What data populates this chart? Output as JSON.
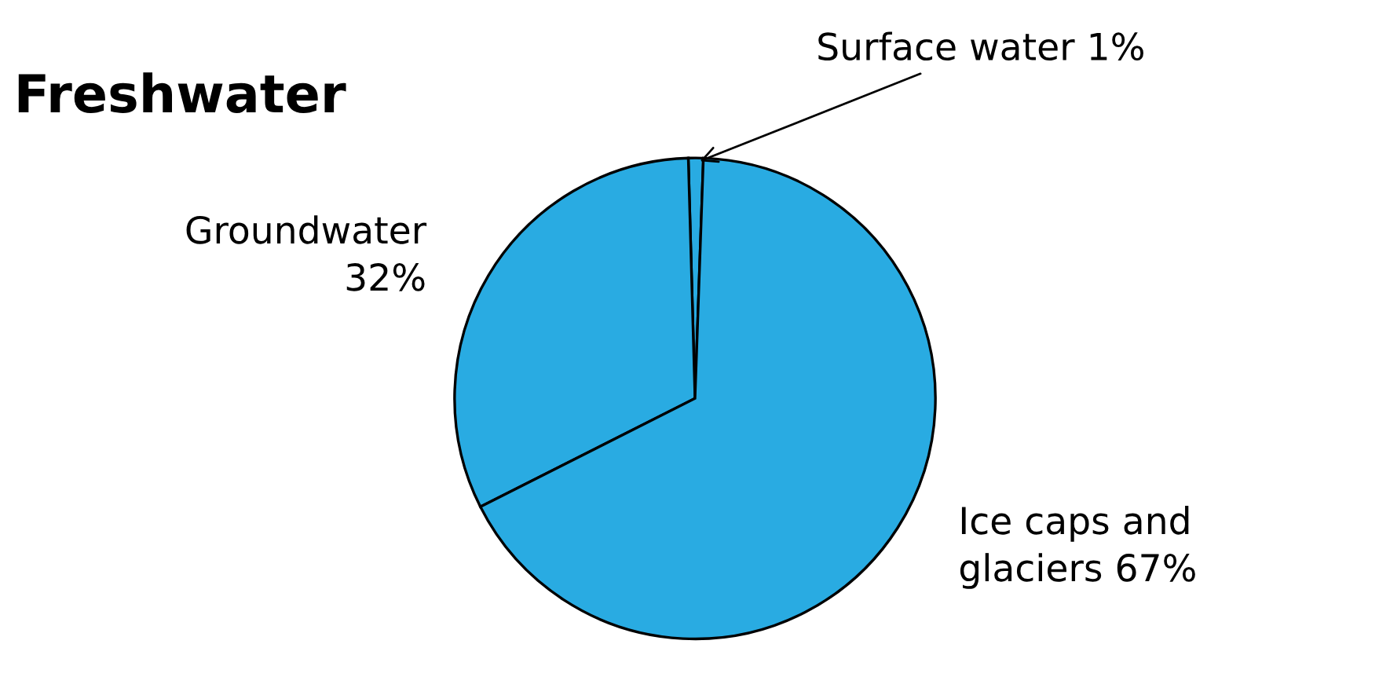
{
  "chart_data": {
    "type": "pie",
    "title": "Freshwater",
    "categories": [
      "Surface water",
      "Groundwater",
      "Ice caps and glaciers"
    ],
    "values": [
      1,
      32,
      67
    ],
    "colors": [
      "#29abe2",
      "#29abe2",
      "#29abe2"
    ],
    "value_labels": [
      "1%",
      "32%",
      "67%"
    ]
  }
}
